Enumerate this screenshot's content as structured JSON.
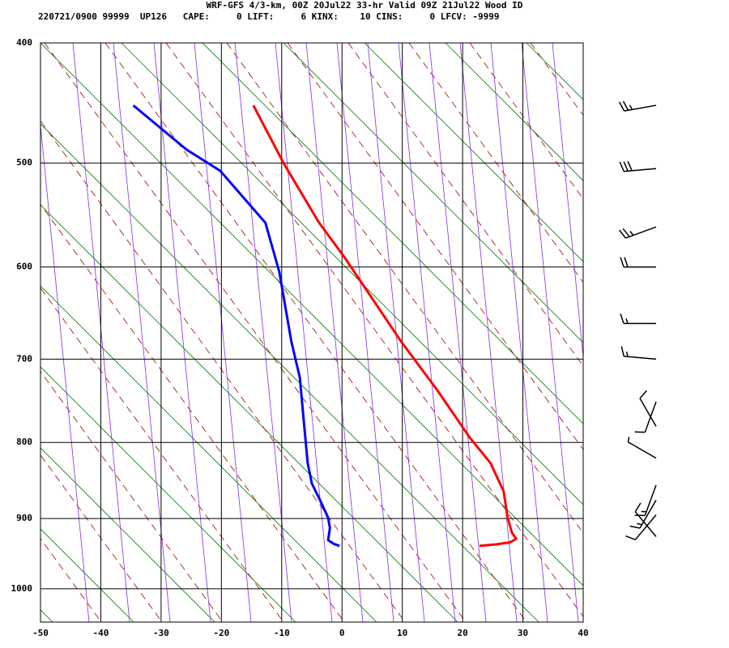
{
  "chart_data": {
    "type": "sounding",
    "title": "WRF-GFS 4/3-km, 00Z 20Jul22 33-hr Valid 09Z 21Jul22 Wood ID",
    "subtitle": "220721/0900 99999  UP126   CAPE:     0 LIFT:     6 KINX:    10 CINS:     0 LFCV: -9999",
    "xlim": [
      -50,
      40
    ],
    "xticks": [
      -50,
      -40,
      -30,
      -20,
      -10,
      0,
      10,
      20,
      30,
      40
    ],
    "ylim": [
      400,
      1050
    ],
    "yticks": [
      400,
      500,
      600,
      700,
      800,
      900,
      1000
    ],
    "grid": true,
    "series": [
      {
        "color": "#ff0000",
        "x": [
          -14.7,
          -9.7,
          -3.9,
          0.4,
          9.8,
          15.8,
          21.2,
          24.6,
          26.8,
          27.5,
          28.2,
          28.9,
          27.9,
          25.5,
          22.8
        ],
        "values": [
          450,
          500,
          555,
          590,
          680,
          736,
          794,
          826,
          863,
          900,
          920,
          928,
          933,
          936,
          938
        ]
      },
      {
        "color": "#0000ff",
        "x": [
          -34.6,
          -25.8,
          -20.2,
          -12.7,
          -10.4,
          -8.4,
          -7.0,
          -6.3,
          -5.7,
          -5.0,
          -3.7,
          -2.3,
          -2.0,
          -2.3,
          -1.4,
          -0.4
        ],
        "values": [
          450,
          488,
          507,
          556,
          605,
          680,
          721,
          776,
          826,
          853,
          874,
          899,
          913,
          930,
          935,
          938
        ]
      }
    ],
    "winds": {
      "pressure": [
        450,
        505,
        560,
        600,
        660,
        700,
        750,
        780,
        820,
        855,
        875,
        895,
        925
      ],
      "direction": [
        260,
        265,
        250,
        270,
        270,
        275,
        200,
        330,
        300,
        200,
        210,
        220,
        320
      ],
      "speed": [
        25,
        30,
        25,
        20,
        15,
        15,
        10,
        10,
        5,
        15,
        15,
        10,
        10
      ]
    }
  }
}
